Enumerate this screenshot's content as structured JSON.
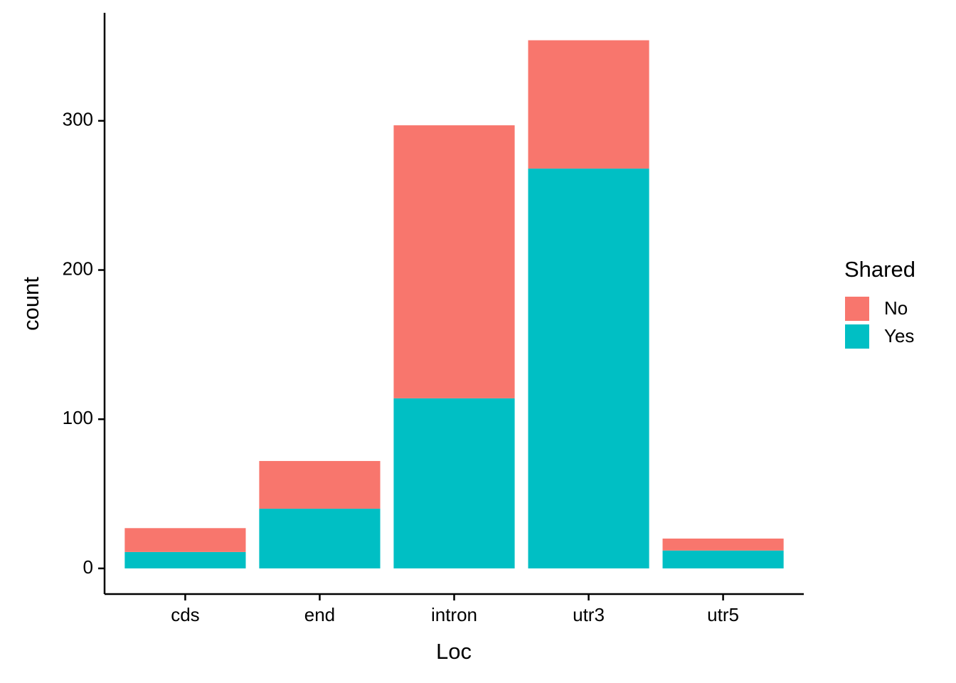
{
  "chart_data": {
    "type": "stacked_bar",
    "x_label": "Loc",
    "y_label": "count",
    "legend_title": "Shared",
    "categories": [
      "cds",
      "end",
      "intron",
      "utr3",
      "utr5"
    ],
    "series": [
      {
        "name": "No",
        "color": "#f8766d",
        "values": [
          16,
          32,
          183,
          86,
          8
        ]
      },
      {
        "name": "Yes",
        "color": "#00bfc4",
        "values": [
          11,
          40,
          114,
          268,
          12
        ]
      }
    ],
    "ylim": [
      -17.2,
      372.4
    ],
    "yticks": [
      0,
      100,
      200,
      300
    ],
    "legend": "right"
  }
}
